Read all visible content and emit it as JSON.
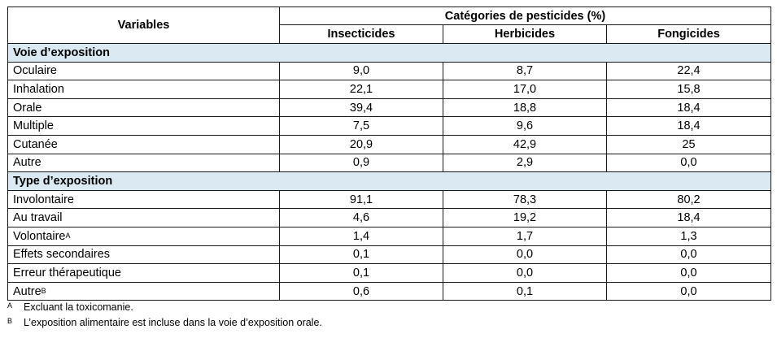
{
  "table": {
    "header": {
      "variables": "Variables",
      "category_group": "Catégories de pesticides (%)",
      "columns": [
        "Insecticides",
        "Herbicides",
        "Fongicides"
      ]
    },
    "sections": [
      {
        "title": "Voie d’exposition",
        "rows": [
          {
            "label": "Oculaire",
            "sup": "",
            "values": [
              "9,0",
              "8,7",
              "22,4"
            ]
          },
          {
            "label": "Inhalation",
            "sup": "",
            "values": [
              "22,1",
              "17,0",
              "15,8"
            ]
          },
          {
            "label": "Orale",
            "sup": "",
            "values": [
              "39,4",
              "18,8",
              "18,4"
            ]
          },
          {
            "label": "Multiple",
            "sup": "",
            "values": [
              "7,5",
              "9,6",
              "18,4"
            ]
          },
          {
            "label": "Cutanée",
            "sup": "",
            "values": [
              "20,9",
              "42,9",
              "25"
            ]
          },
          {
            "label": "Autre",
            "sup": "",
            "values": [
              "0,9",
              "2,9",
              "0,0"
            ]
          }
        ]
      },
      {
        "title": "Type d’exposition",
        "rows": [
          {
            "label": "Involontaire",
            "sup": "",
            "values": [
              "91,1",
              "78,3",
              "80,2"
            ]
          },
          {
            "label": "Au travail",
            "sup": "",
            "values": [
              "4,6",
              "19,2",
              "18,4"
            ]
          },
          {
            "label": "Volontaire",
            "sup": "A",
            "values": [
              "1,4",
              "1,7",
              "1,3"
            ]
          },
          {
            "label": "Effets secondaires",
            "sup": "",
            "values": [
              "0,1",
              "0,0",
              "0,0"
            ]
          },
          {
            "label": "Erreur thérapeutique",
            "sup": "",
            "values": [
              "0,1",
              "0,0",
              "0,0"
            ]
          },
          {
            "label": "Autre",
            "sup": "B",
            "values": [
              "0,6",
              "0,1",
              "0,0"
            ]
          }
        ]
      }
    ]
  },
  "footnotes": [
    {
      "mark": "A",
      "text": "Excluant la toxicomanie."
    },
    {
      "mark": "B",
      "text": "L’exposition alimentaire est incluse dans la voie d’exposition orale."
    }
  ]
}
